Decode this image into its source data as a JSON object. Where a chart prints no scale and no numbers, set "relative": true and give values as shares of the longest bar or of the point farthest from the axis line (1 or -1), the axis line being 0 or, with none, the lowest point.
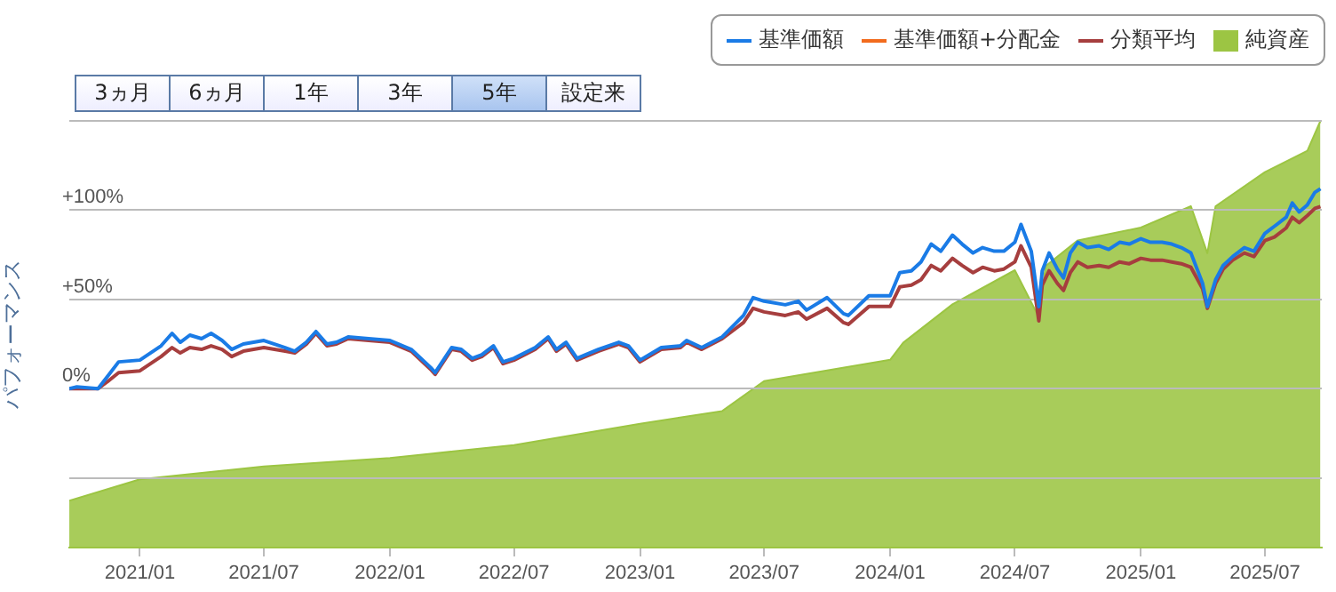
{
  "chart_data": [
    {
      "type": "line",
      "ylabel": "パフォーマンス",
      "annotations": [
        "3ヵ月",
        "6ヵ月",
        "1年",
        "3年",
        "5年",
        "設定来"
      ],
      "x": [
        "2020-09-20",
        "2020-10-01",
        "2020-11-01",
        "2020-11-15",
        "2020-12-01",
        "2021-01-01",
        "2021-02-01",
        "2021-02-17",
        "2021-03-01",
        "2021-03-15",
        "2021-04-01",
        "2021-04-15",
        "2021-05-01",
        "2021-05-15",
        "2021-06-01",
        "2021-07-01",
        "2021-08-01",
        "2021-08-15",
        "2021-09-01",
        "2021-09-15",
        "2021-10-01",
        "2021-10-15",
        "2021-11-01",
        "2021-12-01",
        "2022-01-01",
        "2022-02-01",
        "2022-03-01",
        "2022-03-08",
        "2022-04-01",
        "2022-04-15",
        "2022-05-01",
        "2022-05-15",
        "2022-06-01",
        "2022-06-15",
        "2022-07-01",
        "2022-08-01",
        "2022-08-20",
        "2022-09-01",
        "2022-09-15",
        "2022-10-01",
        "2022-11-01",
        "2022-12-01",
        "2022-12-15",
        "2023-01-01",
        "2023-02-01",
        "2023-03-01",
        "2023-03-10",
        "2023-04-01",
        "2023-05-01",
        "2023-06-01",
        "2023-06-15",
        "2023-07-01",
        "2023-08-01",
        "2023-08-20",
        "2023-09-01",
        "2023-10-01",
        "2023-10-25",
        "2023-11-01",
        "2023-12-01",
        "2024-01-01",
        "2024-01-15",
        "2024-02-01",
        "2024-02-15",
        "2024-03-01",
        "2024-03-15",
        "2024-04-01",
        "2024-04-15",
        "2024-05-01",
        "2024-05-15",
        "2024-06-01",
        "2024-06-15",
        "2024-07-01",
        "2024-07-10",
        "2024-07-25",
        "2024-08-05",
        "2024-08-10",
        "2024-08-20",
        "2024-09-01",
        "2024-09-10",
        "2024-09-20",
        "2024-10-01",
        "2024-10-15",
        "2024-11-01",
        "2024-11-15",
        "2024-12-01",
        "2024-12-15",
        "2025-01-01",
        "2025-01-15",
        "2025-02-01",
        "2025-02-15",
        "2025-03-01",
        "2025-03-15",
        "2025-04-01",
        "2025-04-08",
        "2025-04-20",
        "2025-05-01",
        "2025-05-15",
        "2025-06-01",
        "2025-06-15",
        "2025-07-01",
        "2025-07-15",
        "2025-08-01",
        "2025-08-10",
        "2025-08-20",
        "2025-09-01",
        "2025-09-12",
        "2025-09-20"
      ],
      "series": [
        {
          "name": "基準価額",
          "color": "#1a7be6",
          "values": [
            0,
            1,
            0,
            7,
            15,
            16,
            24,
            31,
            26,
            30,
            28,
            31,
            27,
            22,
            25,
            27,
            23,
            21,
            26,
            32,
            25,
            26,
            29,
            28,
            27,
            22,
            12,
            9,
            23,
            22,
            17,
            19,
            24,
            15,
            17,
            23,
            29,
            22,
            26,
            17,
            22,
            26,
            24,
            16,
            23,
            24,
            27,
            23,
            29,
            41,
            51,
            49,
            47,
            49,
            44,
            51,
            42,
            41,
            52,
            52,
            65,
            66,
            71,
            81,
            77,
            86,
            81,
            76,
            79,
            77,
            77,
            82,
            92,
            77,
            46,
            66,
            76,
            67,
            62,
            76,
            82,
            79,
            80,
            78,
            82,
            81,
            84,
            82,
            82,
            81,
            79,
            76,
            59,
            46,
            61,
            69,
            74,
            79,
            77,
            87,
            91,
            96,
            104,
            99,
            103,
            110,
            112
          ]
        },
        {
          "name": "基準価額+分配金",
          "color": "#f26b1d",
          "values": [
            null,
            null,
            null,
            null,
            null,
            null,
            null,
            null,
            null,
            null,
            null,
            null,
            null,
            null,
            null,
            null,
            null,
            null,
            null,
            null,
            null,
            null,
            null,
            null,
            null,
            null,
            null,
            null,
            null,
            null,
            null,
            null,
            null,
            null,
            null,
            null,
            null,
            null,
            null,
            null,
            null,
            null,
            null,
            null,
            null,
            null,
            null,
            null,
            null,
            null,
            null,
            null,
            null,
            null,
            null,
            null,
            null,
            null,
            null,
            null,
            null,
            null,
            null,
            null,
            null,
            null,
            null,
            null,
            null,
            null,
            null,
            null,
            null,
            null,
            null,
            null,
            null,
            null,
            null,
            null,
            null,
            null,
            null,
            null,
            null,
            null,
            null,
            null,
            null,
            null,
            null,
            null,
            null,
            null,
            null,
            null,
            null,
            null,
            null,
            null,
            null,
            null,
            null,
            null,
            null,
            null,
            null
          ]
        },
        {
          "name": "分類平均",
          "color": "#a63e3e",
          "values": [
            0,
            0,
            0,
            4,
            9,
            10,
            18,
            23,
            20,
            23,
            22,
            24,
            22,
            18,
            21,
            23,
            21,
            20,
            25,
            31,
            24,
            25,
            28,
            27,
            26,
            21,
            11,
            8,
            22,
            21,
            16,
            18,
            23,
            14,
            16,
            22,
            28,
            21,
            25,
            16,
            21,
            25,
            23,
            15,
            22,
            23,
            26,
            22,
            28,
            37,
            45,
            43,
            41,
            43,
            39,
            45,
            37,
            36,
            46,
            46,
            57,
            58,
            61,
            69,
            66,
            73,
            69,
            65,
            68,
            66,
            67,
            71,
            80,
            68,
            38,
            58,
            66,
            59,
            55,
            65,
            71,
            68,
            69,
            68,
            71,
            70,
            73,
            72,
            72,
            71,
            70,
            68,
            56,
            45,
            59,
            67,
            72,
            76,
            74,
            83,
            85,
            90,
            96,
            93,
            97,
            101,
            102
          ]
        }
      ],
      "xlim": [
        "2020-09-20",
        "2025-09-22"
      ],
      "ylim": [
        -89,
        150
      ],
      "yticks": [
        {
          "value": -50,
          "label": null
        },
        {
          "value": 0,
          "label": "0%"
        },
        {
          "value": 50,
          "label": "+50%"
        },
        {
          "value": 100,
          "label": "+100%"
        },
        {
          "value": 150,
          "label": null
        }
      ],
      "grid": "y",
      "legend": "top right",
      "marker": "none",
      "line_style": "solid",
      "tick_labels": "y"
    },
    {
      "type": "area",
      "relative": true,
      "tick_labels": "x",
      "legend": "top right",
      "xticks": [
        {
          "value": "2021-01-01",
          "label": "2021/01"
        },
        {
          "value": "2021-07-01",
          "label": "2021/07"
        },
        {
          "value": "2022-01-01",
          "label": "2022/01"
        },
        {
          "value": "2022-07-01",
          "label": "2022/07"
        },
        {
          "value": "2023-01-01",
          "label": "2023/01"
        },
        {
          "value": "2023-07-01",
          "label": "2023/07"
        },
        {
          "value": "2024-01-01",
          "label": "2024/01"
        },
        {
          "value": "2024-07-01",
          "label": "2024/07"
        },
        {
          "value": "2025-01-01",
          "label": "2025/01"
        },
        {
          "value": "2025-07-01",
          "label": "2025/07"
        }
      ],
      "x": [
        "2020-09-20",
        "2021-01-01",
        "2021-07-01",
        "2022-01-01",
        "2022-07-01",
        "2023-01-01",
        "2023-05-01",
        "2023-07-01",
        "2024-01-01",
        "2024-01-20",
        "2024-04-01",
        "2024-07-01",
        "2024-08-05",
        "2024-08-15",
        "2024-10-01",
        "2025-01-01",
        "2025-03-15",
        "2025-04-08",
        "2025-04-20",
        "2025-07-01",
        "2025-09-01",
        "2025-09-20"
      ],
      "xlim": [
        "2020-09-20",
        "2025-09-22"
      ],
      "series": [
        {
          "name": "純資産",
          "color": "#9cc543",
          "values": [
            0.11,
            0.16,
            0.19,
            0.21,
            0.24,
            0.29,
            0.32,
            0.39,
            0.44,
            0.48,
            0.57,
            0.65,
            0.54,
            0.66,
            0.72,
            0.75,
            0.8,
            0.69,
            0.8,
            0.88,
            0.93,
            1
          ]
        }
      ]
    }
  ]
}
